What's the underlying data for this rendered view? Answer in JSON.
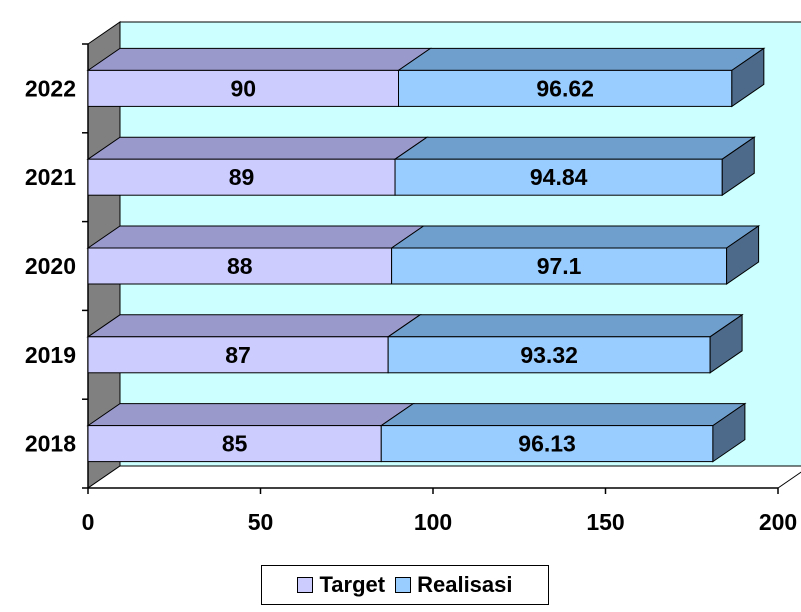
{
  "chart_data": {
    "type": "bar",
    "orientation": "horizontal",
    "stacked": true,
    "three_d": true,
    "categories": [
      "2018",
      "2019",
      "2020",
      "2021",
      "2022"
    ],
    "series": [
      {
        "name": "Target",
        "values": [
          85,
          87,
          88,
          89,
          90
        ],
        "labels": [
          "85",
          "87",
          "88",
          "89",
          "90"
        ],
        "color": "#ccccff"
      },
      {
        "name": "Realisasi",
        "values": [
          96.13,
          93.32,
          97.1,
          94.84,
          96.62
        ],
        "labels": [
          "96.13",
          "93.32",
          "97.1",
          "94.84",
          "96.62"
        ],
        "color": "#99ccff"
      }
    ],
    "xlim": [
      0,
      200
    ],
    "x_ticks": [
      "0",
      "50",
      "100",
      "150",
      "200"
    ],
    "legend": "bottom",
    "grid": false,
    "colors": {
      "back_wall": "#ccffff",
      "side_wall": "#808080",
      "target_top": "#9999cc",
      "realisasi_top": "#6f9fcc",
      "realisasi_side": "#4d6a8a"
    }
  }
}
